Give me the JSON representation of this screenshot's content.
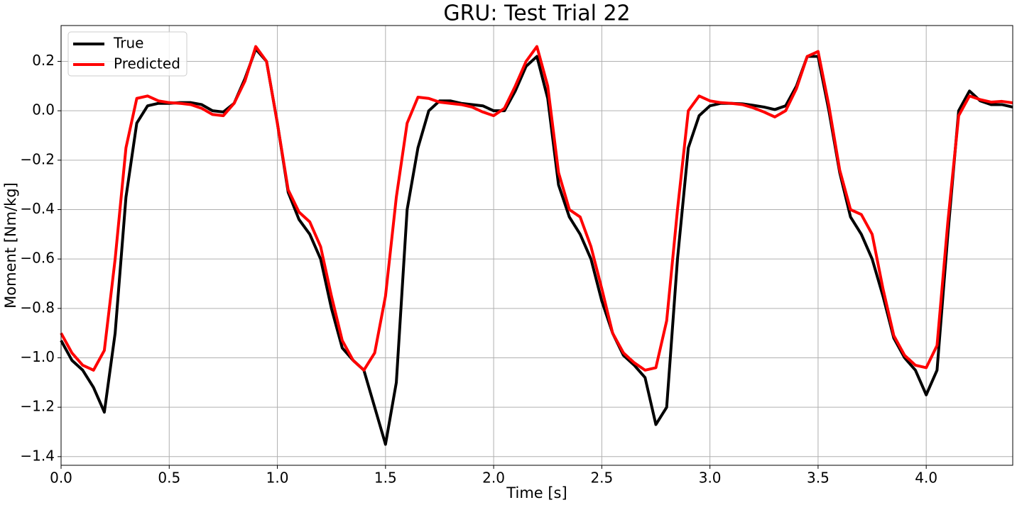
{
  "chart_data": {
    "type": "line",
    "title": "GRU: Test Trial 22",
    "x_label": "Time [s]",
    "y_label": "Moment [Nm/kg]",
    "x": [
      0,
      0.05,
      0.1,
      0.15,
      0.2,
      0.25,
      0.3,
      0.35,
      0.4,
      0.45,
      0.5,
      0.55,
      0.6,
      0.65,
      0.7,
      0.75,
      0.8,
      0.85,
      0.9,
      0.95,
      1.0,
      1.05,
      1.1,
      1.15,
      1.2,
      1.25,
      1.3,
      1.35,
      1.4,
      1.45,
      1.5,
      1.55,
      1.6,
      1.65,
      1.7,
      1.75,
      1.8,
      1.85,
      1.9,
      1.95,
      2.0,
      2.05,
      2.1,
      2.15,
      2.2,
      2.25,
      2.3,
      2.35,
      2.4,
      2.45,
      2.5,
      2.55,
      2.6,
      2.65,
      2.7,
      2.75,
      2.8,
      2.85,
      2.9,
      2.95,
      3.0,
      3.05,
      3.1,
      3.15,
      3.2,
      3.25,
      3.3,
      3.35,
      3.4,
      3.45,
      3.5,
      3.55,
      3.6,
      3.65,
      3.7,
      3.75,
      3.8,
      3.85,
      3.9,
      3.95,
      4.0,
      4.05,
      4.1,
      4.15,
      4.2,
      4.25,
      4.3,
      4.35,
      4.4
    ],
    "series": [
      {
        "name": "True",
        "color": "#000000",
        "values": [
          -0.93,
          -1.01,
          -1.05,
          -1.12,
          -1.22,
          -0.9,
          -0.35,
          -0.05,
          0.02,
          0.03,
          0.03,
          0.033,
          0.033,
          0.025,
          0.0,
          -0.005,
          0.03,
          0.13,
          0.25,
          0.2,
          -0.05,
          -0.33,
          -0.44,
          -0.5,
          -0.6,
          -0.8,
          -0.96,
          -1.01,
          -1.05,
          -1.2,
          -1.35,
          -1.1,
          -0.4,
          -0.15,
          0.0,
          0.04,
          0.04,
          0.03,
          0.025,
          0.02,
          0.0,
          0.0,
          0.08,
          0.18,
          0.22,
          0.05,
          -0.3,
          -0.43,
          -0.5,
          -0.6,
          -0.77,
          -0.9,
          -0.99,
          -1.03,
          -1.08,
          -1.27,
          -1.2,
          -0.6,
          -0.15,
          -0.02,
          0.02,
          0.03,
          0.03,
          0.028,
          0.022,
          0.015,
          0.005,
          0.02,
          0.1,
          0.22,
          0.22,
          0.0,
          -0.25,
          -0.43,
          -0.5,
          -0.6,
          -0.75,
          -0.92,
          -1.0,
          -1.05,
          -1.15,
          -1.05,
          -0.5,
          0.0,
          0.08,
          0.04,
          0.025,
          0.025,
          0.015
        ]
      },
      {
        "name": "Predicted",
        "color": "#ff0000",
        "values": [
          -0.9,
          -0.98,
          -1.03,
          -1.05,
          -0.97,
          -0.6,
          -0.15,
          0.05,
          0.06,
          0.04,
          0.033,
          0.03,
          0.025,
          0.01,
          -0.015,
          -0.02,
          0.03,
          0.12,
          0.26,
          0.2,
          -0.05,
          -0.32,
          -0.41,
          -0.45,
          -0.55,
          -0.75,
          -0.93,
          -1.01,
          -1.05,
          -0.98,
          -0.75,
          -0.35,
          -0.05,
          0.055,
          0.05,
          0.035,
          0.03,
          0.025,
          0.015,
          -0.005,
          -0.02,
          0.01,
          0.1,
          0.2,
          0.26,
          0.1,
          -0.25,
          -0.4,
          -0.43,
          -0.55,
          -0.72,
          -0.9,
          -0.98,
          -1.02,
          -1.05,
          -1.04,
          -0.85,
          -0.4,
          0.0,
          0.06,
          0.04,
          0.033,
          0.03,
          0.025,
          0.012,
          -0.005,
          -0.025,
          0.0,
          0.09,
          0.22,
          0.24,
          0.02,
          -0.24,
          -0.4,
          -0.42,
          -0.5,
          -0.72,
          -0.91,
          -0.99,
          -1.03,
          -1.04,
          -0.95,
          -0.45,
          -0.02,
          0.06,
          0.045,
          0.035,
          0.038,
          0.032
        ]
      }
    ],
    "xlim": [
      0,
      4.4
    ],
    "ylim": [
      -1.435,
      0.345
    ],
    "xticks": [
      {
        "value": 0,
        "label": "0.0"
      },
      0.5,
      {
        "value": 1,
        "label": "1.0"
      },
      1.5,
      {
        "value": 2,
        "label": "2.0"
      },
      2.5,
      {
        "value": 3,
        "label": "3.0"
      },
      3.5,
      {
        "value": 4,
        "label": "4.0"
      }
    ],
    "yticks": [
      {
        "value": -1.4,
        "label": "−1.4"
      },
      {
        "value": -1.2,
        "label": "−1.2"
      },
      {
        "value": -1,
        "label": "−1.0"
      },
      {
        "value": -0.8,
        "label": "−0.8"
      },
      {
        "value": -0.6,
        "label": "−0.6"
      },
      {
        "value": -0.4,
        "label": "−0.4"
      },
      {
        "value": -0.2,
        "label": "−0.2"
      },
      {
        "value": 0,
        "label": "0.0"
      },
      0.2
    ],
    "grid": true,
    "legend": "upper left"
  }
}
